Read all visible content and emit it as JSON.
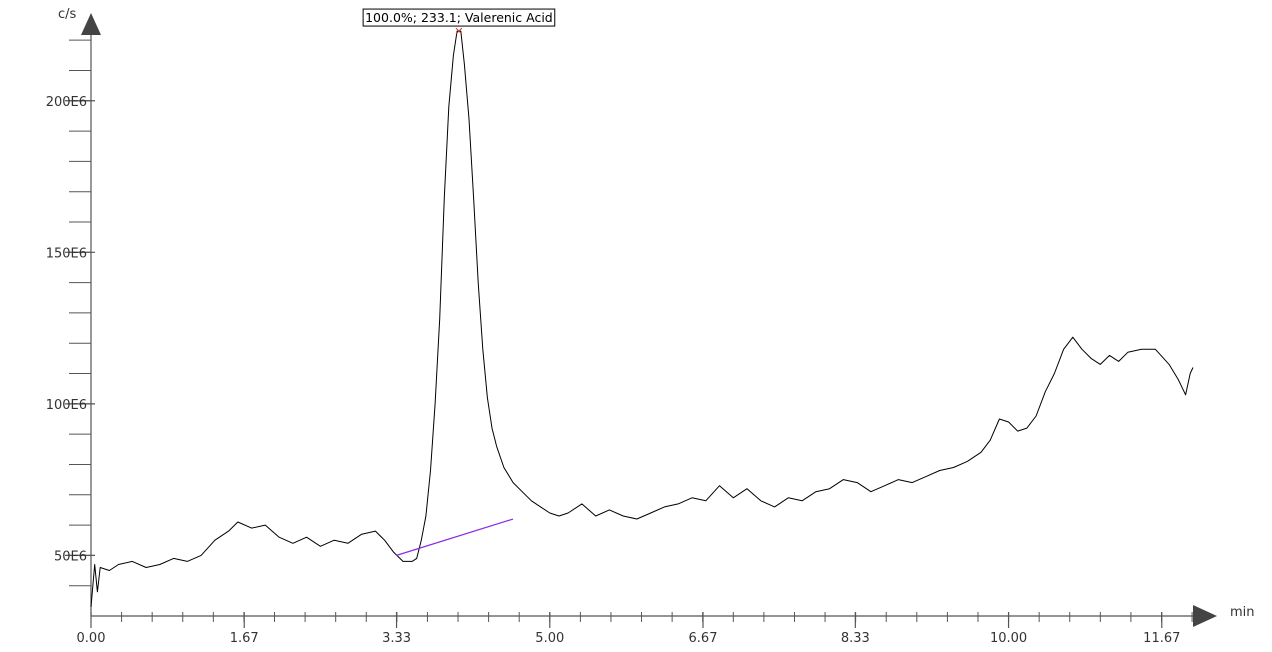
{
  "chart_data": {
    "type": "line",
    "title": "",
    "xlabel": "min",
    "ylabel": "c/s",
    "xlim": [
      0.0,
      12.25
    ],
    "ylim": [
      30000000,
      225000000
    ],
    "x_ticks": [
      0.0,
      1.67,
      3.33,
      5.0,
      6.67,
      8.33,
      10.0,
      11.67
    ],
    "x_tick_labels": [
      "0.00",
      "1.67",
      "3.33",
      "5.00",
      "6.67",
      "8.33",
      "10.00",
      "11.67"
    ],
    "y_ticks": [
      50000000,
      100000000,
      150000000,
      200000000
    ],
    "y_tick_labels": [
      "50E6",
      "100E6",
      "150E6",
      "200E6"
    ],
    "grid": false,
    "series": [
      {
        "color": "#000000",
        "points": [
          [
            0.0,
            33000000
          ],
          [
            0.04,
            47000000
          ],
          [
            0.07,
            38000000
          ],
          [
            0.1,
            46000000
          ],
          [
            0.2,
            45000000
          ],
          [
            0.3,
            47000000
          ],
          [
            0.45,
            48000000
          ],
          [
            0.6,
            46000000
          ],
          [
            0.75,
            47000000
          ],
          [
            0.9,
            49000000
          ],
          [
            1.05,
            48000000
          ],
          [
            1.2,
            50000000
          ],
          [
            1.35,
            55000000
          ],
          [
            1.5,
            58000000
          ],
          [
            1.6,
            61000000
          ],
          [
            1.75,
            59000000
          ],
          [
            1.9,
            60000000
          ],
          [
            2.05,
            56000000
          ],
          [
            2.2,
            54000000
          ],
          [
            2.35,
            56000000
          ],
          [
            2.5,
            53000000
          ],
          [
            2.65,
            55000000
          ],
          [
            2.8,
            54000000
          ],
          [
            2.95,
            57000000
          ],
          [
            3.1,
            58000000
          ],
          [
            3.2,
            55000000
          ],
          [
            3.3,
            51000000
          ],
          [
            3.4,
            48000000
          ],
          [
            3.5,
            48000000
          ],
          [
            3.55,
            49000000
          ],
          [
            3.6,
            55000000
          ],
          [
            3.65,
            63000000
          ],
          [
            3.7,
            78000000
          ],
          [
            3.75,
            100000000
          ],
          [
            3.8,
            128000000
          ],
          [
            3.85,
            168000000
          ],
          [
            3.9,
            198000000
          ],
          [
            3.95,
            215000000
          ],
          [
            3.99,
            223000000
          ],
          [
            4.03,
            223000000
          ],
          [
            4.07,
            212000000
          ],
          [
            4.12,
            194000000
          ],
          [
            4.17,
            168000000
          ],
          [
            4.22,
            140000000
          ],
          [
            4.27,
            118000000
          ],
          [
            4.32,
            102000000
          ],
          [
            4.37,
            92000000
          ],
          [
            4.42,
            86000000
          ],
          [
            4.5,
            79000000
          ],
          [
            4.6,
            74000000
          ],
          [
            4.7,
            71000000
          ],
          [
            4.8,
            68000000
          ],
          [
            4.9,
            66000000
          ],
          [
            5.0,
            64000000
          ],
          [
            5.1,
            63000000
          ],
          [
            5.2,
            64000000
          ],
          [
            5.35,
            67000000
          ],
          [
            5.5,
            63000000
          ],
          [
            5.65,
            65000000
          ],
          [
            5.8,
            63000000
          ],
          [
            5.95,
            62000000
          ],
          [
            6.1,
            64000000
          ],
          [
            6.25,
            66000000
          ],
          [
            6.4,
            67000000
          ],
          [
            6.55,
            69000000
          ],
          [
            6.7,
            68000000
          ],
          [
            6.85,
            73000000
          ],
          [
            7.0,
            69000000
          ],
          [
            7.15,
            72000000
          ],
          [
            7.3,
            68000000
          ],
          [
            7.45,
            66000000
          ],
          [
            7.6,
            69000000
          ],
          [
            7.75,
            68000000
          ],
          [
            7.9,
            71000000
          ],
          [
            8.05,
            72000000
          ],
          [
            8.2,
            75000000
          ],
          [
            8.35,
            74000000
          ],
          [
            8.5,
            71000000
          ],
          [
            8.65,
            73000000
          ],
          [
            8.8,
            75000000
          ],
          [
            8.95,
            74000000
          ],
          [
            9.1,
            76000000
          ],
          [
            9.25,
            78000000
          ],
          [
            9.4,
            79000000
          ],
          [
            9.55,
            81000000
          ],
          [
            9.7,
            84000000
          ],
          [
            9.8,
            88000000
          ],
          [
            9.9,
            95000000
          ],
          [
            10.0,
            94000000
          ],
          [
            10.1,
            91000000
          ],
          [
            10.2,
            92000000
          ],
          [
            10.3,
            96000000
          ],
          [
            10.4,
            104000000
          ],
          [
            10.5,
            110000000
          ],
          [
            10.6,
            118000000
          ],
          [
            10.7,
            122000000
          ],
          [
            10.8,
            118000000
          ],
          [
            10.9,
            115000000
          ],
          [
            11.0,
            113000000
          ],
          [
            11.1,
            116000000
          ],
          [
            11.2,
            114000000
          ],
          [
            11.3,
            117000000
          ],
          [
            11.45,
            118000000
          ],
          [
            11.6,
            118000000
          ],
          [
            11.75,
            113000000
          ],
          [
            11.85,
            108000000
          ],
          [
            11.93,
            103000000
          ],
          [
            11.98,
            110000000
          ],
          [
            12.01,
            112000000
          ]
        ]
      }
    ],
    "baseline": {
      "color": "#8a2be2",
      "points": [
        [
          3.33,
          50000000
        ],
        [
          4.6,
          62000000
        ]
      ]
    },
    "annotations": [
      {
        "text": "100.0%; 233.1; Valerenic Acid",
        "x": 4.01,
        "y": 223000000
      }
    ]
  }
}
